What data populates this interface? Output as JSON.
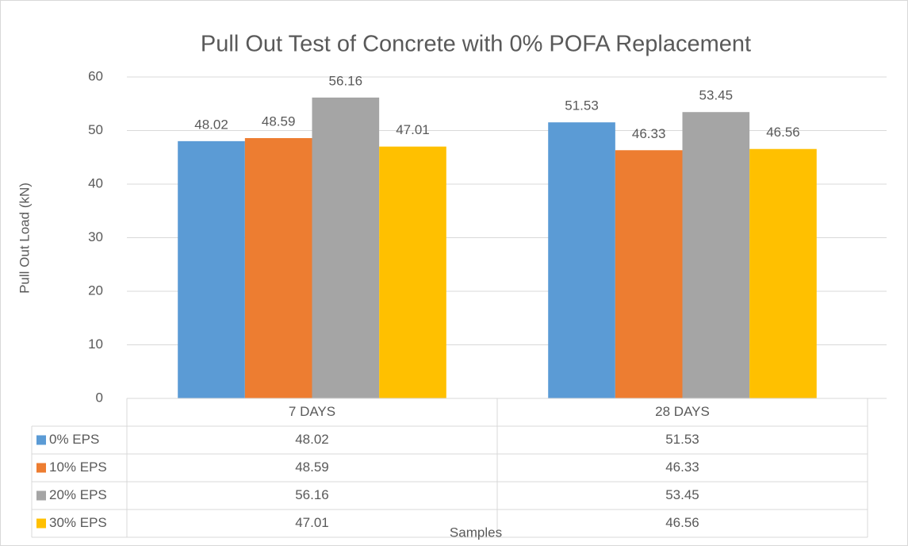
{
  "chart_data": {
    "type": "bar",
    "title": "Pull Out Test of Concrete with 0% POFA Replacement",
    "x_label": "Samples",
    "y_label": "Pull Out Load (kN)",
    "categories": [
      "7 DAYS",
      "28 DAYS"
    ],
    "series": [
      {
        "name": "0% EPS",
        "color": "#5b9bd5",
        "values": [
          48.02,
          51.53
        ]
      },
      {
        "name": "10% EPS",
        "color": "#ed7d31",
        "values": [
          48.59,
          46.33
        ]
      },
      {
        "name": "20% EPS",
        "color": "#a5a5a5",
        "values": [
          56.16,
          53.45
        ]
      },
      {
        "name": "30% EPS",
        "color": "#ffc000",
        "values": [
          47.01,
          46.56
        ]
      }
    ],
    "ylim": [
      0,
      60
    ],
    "yticks": [
      0,
      10,
      20,
      30,
      40,
      50,
      60
    ],
    "grid": true,
    "data_table": true
  }
}
